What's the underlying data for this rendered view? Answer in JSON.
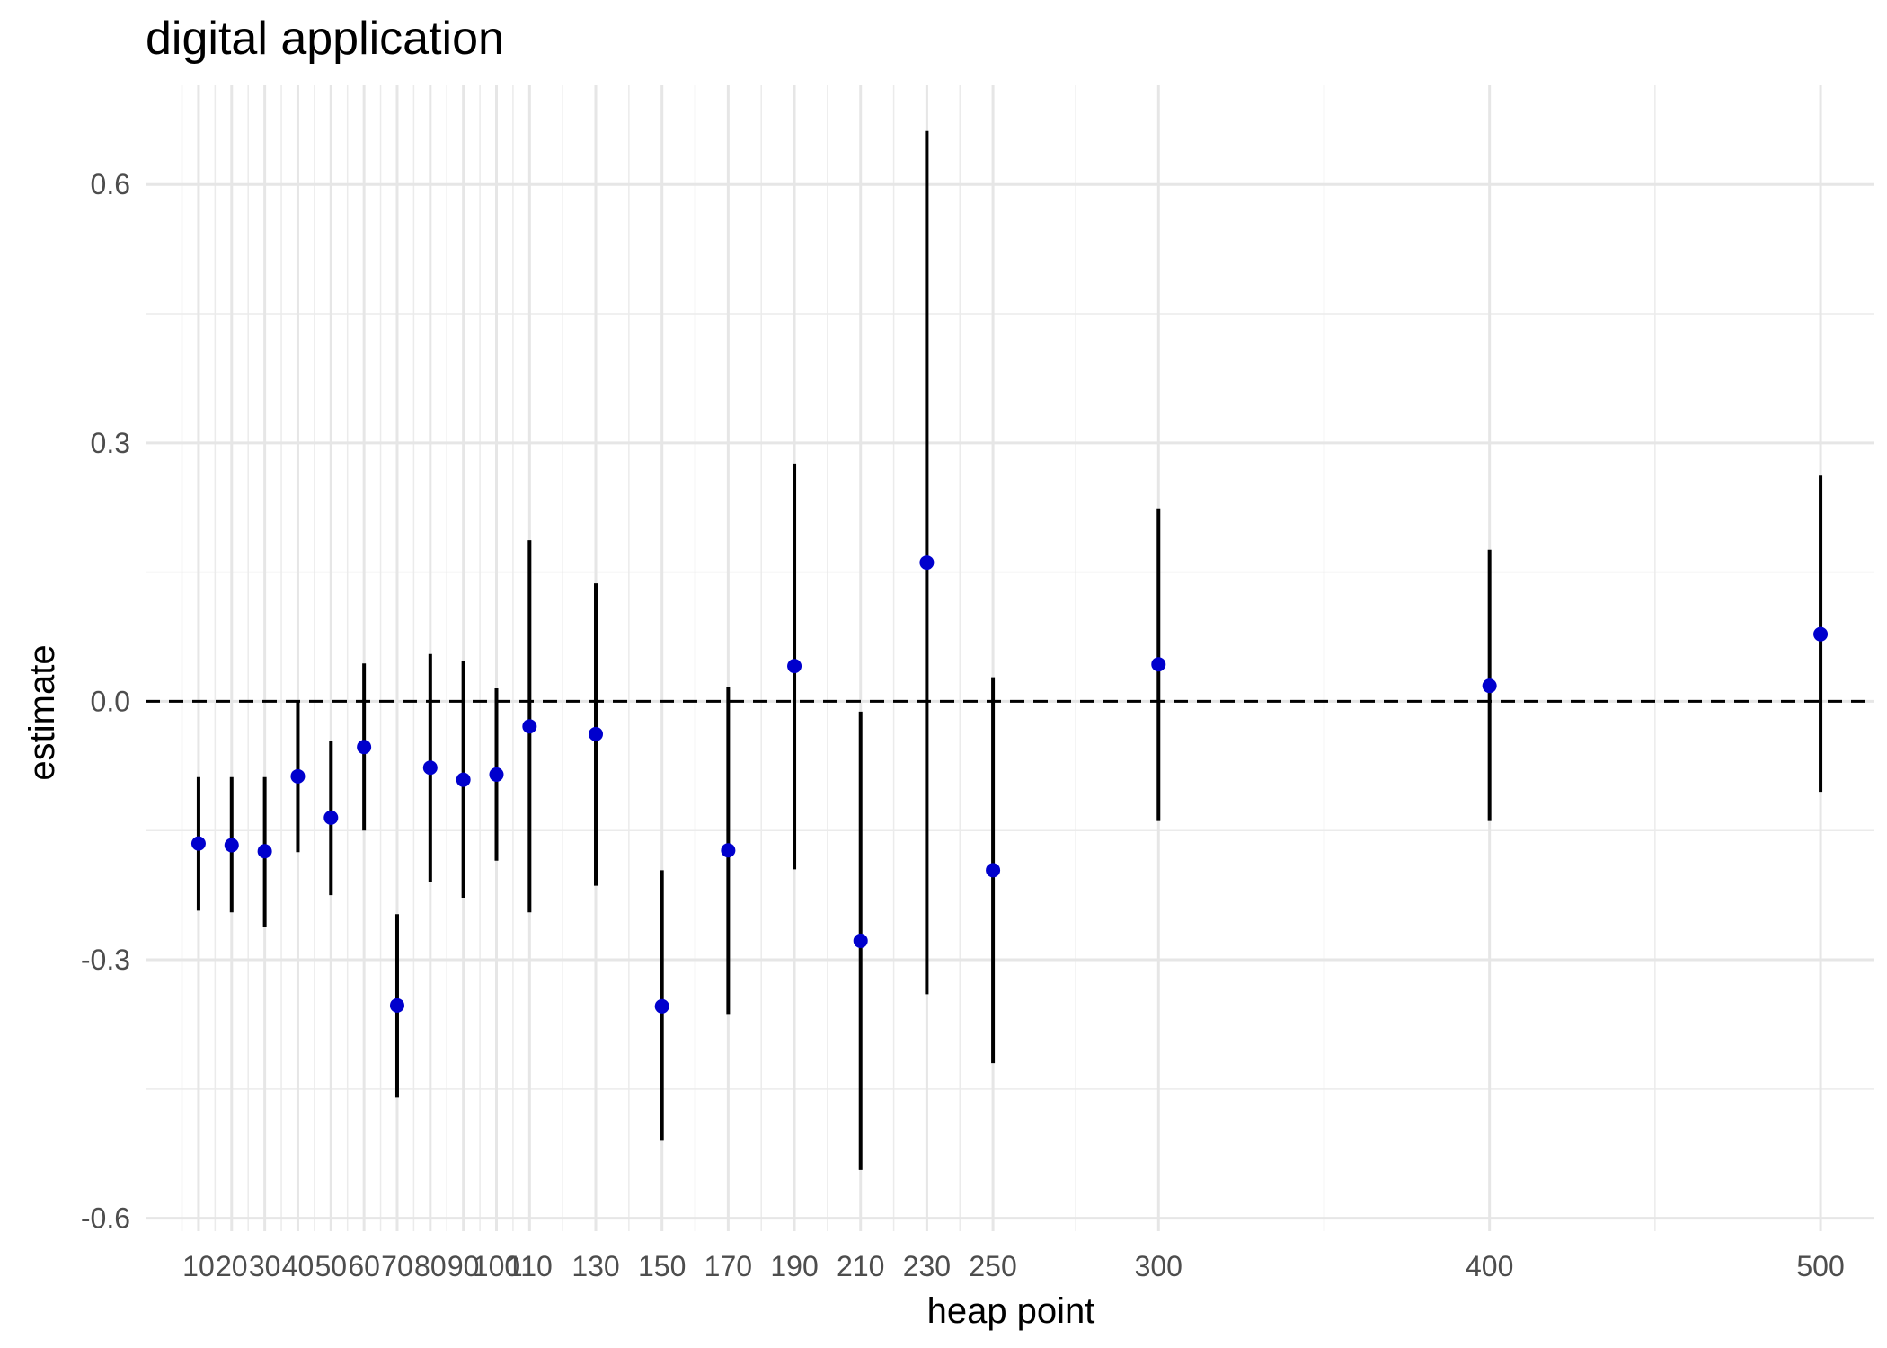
{
  "chart_data": {
    "type": "scatter",
    "title": "digital application",
    "xlabel": "heap point",
    "ylabel": "estimate",
    "xlim": [
      -6,
      516
    ],
    "ylim": [
      -0.615,
      0.715
    ],
    "x_ticks": [
      10,
      20,
      30,
      40,
      50,
      60,
      70,
      80,
      90,
      100,
      110,
      130,
      150,
      170,
      190,
      210,
      230,
      250,
      300,
      400,
      500
    ],
    "x_tick_labels": [
      "10",
      "20",
      "30",
      "40",
      "50",
      "60",
      "70",
      "80",
      "90",
      "100",
      "110",
      "130",
      "150",
      "170",
      "190",
      "210",
      "230",
      "250",
      "300",
      "400",
      "500"
    ],
    "y_ticks": [
      -0.6,
      -0.3,
      0.0,
      0.3,
      0.6
    ],
    "y_tick_labels": [
      "-0.6",
      "-0.3",
      "0.0",
      "0.3",
      "0.6"
    ],
    "reference_line": {
      "y": 0,
      "style": "dashed"
    },
    "grid": true,
    "point_color": "#0000CD",
    "interval_color": "#000000",
    "points": [
      {
        "x": 10,
        "estimate": -0.165,
        "lower": -0.243,
        "upper": -0.088
      },
      {
        "x": 20,
        "estimate": -0.167,
        "lower": -0.245,
        "upper": -0.088
      },
      {
        "x": 30,
        "estimate": -0.174,
        "lower": -0.262,
        "upper": -0.088
      },
      {
        "x": 40,
        "estimate": -0.087,
        "lower": -0.175,
        "upper": 0.0
      },
      {
        "x": 50,
        "estimate": -0.135,
        "lower": -0.225,
        "upper": -0.046
      },
      {
        "x": 60,
        "estimate": -0.053,
        "lower": -0.15,
        "upper": 0.044
      },
      {
        "x": 70,
        "estimate": -0.353,
        "lower": -0.46,
        "upper": -0.247
      },
      {
        "x": 80,
        "estimate": -0.077,
        "lower": -0.21,
        "upper": 0.055
      },
      {
        "x": 90,
        "estimate": -0.091,
        "lower": -0.228,
        "upper": 0.047
      },
      {
        "x": 100,
        "estimate": -0.085,
        "lower": -0.185,
        "upper": 0.015
      },
      {
        "x": 110,
        "estimate": -0.029,
        "lower": -0.245,
        "upper": 0.187
      },
      {
        "x": 130,
        "estimate": -0.038,
        "lower": -0.214,
        "upper": 0.137
      },
      {
        "x": 150,
        "estimate": -0.354,
        "lower": -0.51,
        "upper": -0.196
      },
      {
        "x": 170,
        "estimate": -0.173,
        "lower": -0.363,
        "upper": 0.017
      },
      {
        "x": 190,
        "estimate": 0.041,
        "lower": -0.195,
        "upper": 0.276
      },
      {
        "x": 210,
        "estimate": -0.278,
        "lower": -0.544,
        "upper": -0.012
      },
      {
        "x": 230,
        "estimate": 0.161,
        "lower": -0.34,
        "upper": 0.662
      },
      {
        "x": 250,
        "estimate": -0.196,
        "lower": -0.42,
        "upper": 0.028
      },
      {
        "x": 300,
        "estimate": 0.043,
        "lower": -0.139,
        "upper": 0.224
      },
      {
        "x": 400,
        "estimate": 0.018,
        "lower": -0.139,
        "upper": 0.176
      },
      {
        "x": 500,
        "estimate": 0.078,
        "lower": -0.105,
        "upper": 0.262
      }
    ]
  }
}
